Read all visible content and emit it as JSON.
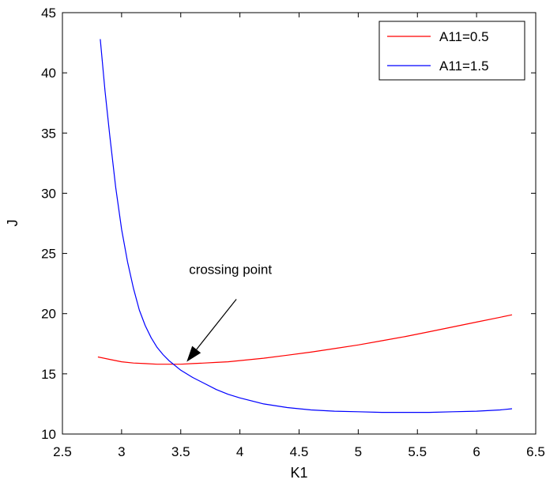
{
  "chart_data": {
    "type": "line",
    "title": "",
    "xlabel": "K1",
    "ylabel": "J",
    "xlim": [
      2.5,
      6.5
    ],
    "ylim": [
      10,
      45
    ],
    "xticks": [
      2.5,
      3,
      3.5,
      4,
      4.5,
      5,
      5.5,
      6,
      6.5
    ],
    "xtick_labels": [
      "2.5",
      "3",
      "3.5",
      "4",
      "4.5",
      "5",
      "5.5",
      "6",
      "6.5"
    ],
    "yticks": [
      10,
      15,
      20,
      25,
      30,
      35,
      40,
      45
    ],
    "ytick_labels": [
      "10",
      "15",
      "20",
      "25",
      "30",
      "35",
      "40",
      "45"
    ],
    "grid": false,
    "legend_position": "top-right",
    "series": [
      {
        "name": "A11=0.5",
        "color": "#ff0000",
        "x": [
          2.8,
          2.9,
          3.0,
          3.1,
          3.2,
          3.3,
          3.4,
          3.5,
          3.6,
          3.7,
          3.8,
          3.9,
          4.0,
          4.2,
          4.4,
          4.6,
          4.8,
          5.0,
          5.2,
          5.4,
          5.6,
          5.8,
          6.0,
          6.2,
          6.3
        ],
        "y": [
          16.4,
          16.2,
          16.0,
          15.9,
          15.85,
          15.8,
          15.8,
          15.8,
          15.85,
          15.9,
          15.95,
          16.0,
          16.1,
          16.3,
          16.55,
          16.8,
          17.1,
          17.4,
          17.75,
          18.1,
          18.5,
          18.9,
          19.3,
          19.7,
          19.9
        ]
      },
      {
        "name": "A11=1.5",
        "color": "#0000ff",
        "x": [
          2.82,
          2.86,
          2.9,
          2.95,
          3.0,
          3.05,
          3.1,
          3.15,
          3.2,
          3.25,
          3.3,
          3.35,
          3.4,
          3.5,
          3.6,
          3.7,
          3.8,
          3.9,
          4.0,
          4.2,
          4.4,
          4.6,
          4.8,
          5.0,
          5.2,
          5.4,
          5.6,
          5.8,
          6.0,
          6.2,
          6.3
        ],
        "y": [
          42.8,
          38.5,
          34.8,
          30.5,
          27.0,
          24.3,
          22.1,
          20.3,
          19.0,
          18.0,
          17.2,
          16.6,
          16.1,
          15.3,
          14.7,
          14.2,
          13.7,
          13.3,
          13.0,
          12.5,
          12.2,
          12.0,
          11.9,
          11.85,
          11.8,
          11.8,
          11.8,
          11.85,
          11.9,
          12.0,
          12.1
        ]
      }
    ],
    "annotations": [
      {
        "text": "crossing point",
        "point": [
          3.55,
          16.0
        ],
        "text_at": [
          3.92,
          23.3
        ],
        "arrow_from": [
          3.97,
          21.2
        ]
      }
    ]
  }
}
